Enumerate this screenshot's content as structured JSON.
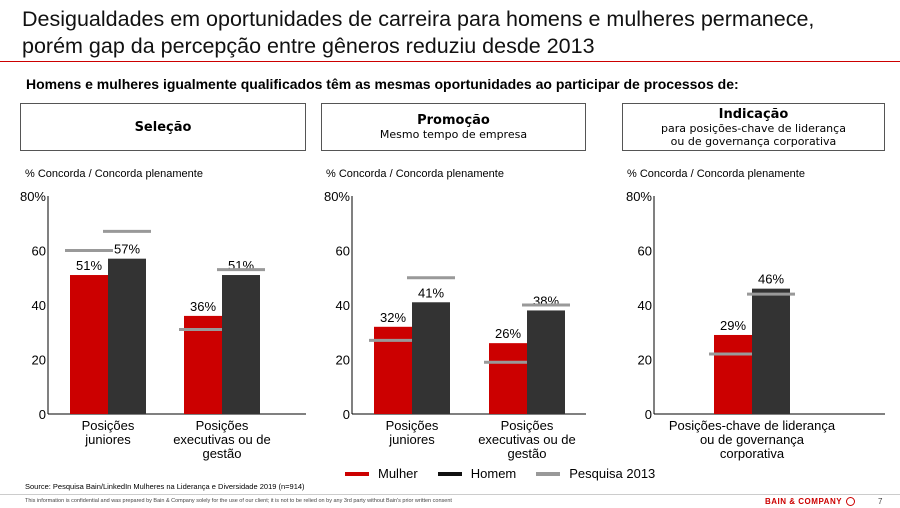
{
  "header": {
    "title_line1": "Desigualdades em oportunidades de carreira para homens e mulheres permanece,",
    "title_line2": "porém gap da percepção entre gêneros reduziu desde 2013",
    "subtitle": "Homens e mulheres igualmente qualificados têm as mesmas oportunidades ao participar de processos de:"
  },
  "colors": {
    "mulher": "#cc0000",
    "homem": "#333333",
    "pesquisa2013": "#999999",
    "accent": "#cc0000"
  },
  "chart_data": [
    {
      "type": "bar",
      "box_title": "Seleção",
      "box_subtitle": "",
      "ylabel": "% Concorda / Concorda plenamente",
      "ylim": [
        0,
        80
      ],
      "yticks": [
        "0",
        "20",
        "40",
        "60",
        "80%"
      ],
      "categories": [
        [
          "Posições",
          "juniores"
        ],
        [
          "Posições",
          "executivas ou de",
          "gestão"
        ]
      ],
      "series": [
        {
          "name": "Mulher",
          "values": [
            51,
            36
          ],
          "labels": [
            "51%",
            "36%"
          ]
        },
        {
          "name": "Homem",
          "values": [
            57,
            51
          ],
          "labels": [
            "57%",
            "51%"
          ]
        }
      ],
      "pesquisa_2013": {
        "mulher": [
          60,
          31
        ],
        "homem": [
          67,
          53
        ]
      }
    },
    {
      "type": "bar",
      "box_title": "Promoção",
      "box_subtitle": "Mesmo tempo de empresa",
      "ylabel": "% Concorda / Concorda plenamente",
      "ylim": [
        0,
        80
      ],
      "yticks": [
        "0",
        "20",
        "40",
        "60",
        "80%"
      ],
      "categories": [
        [
          "Posições",
          "juniores"
        ],
        [
          "Posições",
          "executivas ou de",
          "gestão"
        ]
      ],
      "series": [
        {
          "name": "Mulher",
          "values": [
            32,
            26
          ],
          "labels": [
            "32%",
            "26%"
          ]
        },
        {
          "name": "Homem",
          "values": [
            41,
            38
          ],
          "labels": [
            "41%",
            "38%"
          ]
        }
      ],
      "pesquisa_2013": {
        "mulher": [
          27,
          19
        ],
        "homem": [
          50,
          40
        ]
      }
    },
    {
      "type": "bar",
      "box_title": "Indicação",
      "box_subtitle": "para posições-chave de liderança ou de governança corporativa",
      "ylabel": "% Concorda / Concorda plenamente",
      "ylim": [
        0,
        80
      ],
      "yticks": [
        "0",
        "20",
        "40",
        "60",
        "80%"
      ],
      "categories": [
        [
          "Posições-chave de liderança",
          "ou de governança",
          "corporativa"
        ]
      ],
      "series": [
        {
          "name": "Mulher",
          "values": [
            29
          ],
          "labels": [
            "29%"
          ]
        },
        {
          "name": "Homem",
          "values": [
            46
          ],
          "labels": [
            "46%"
          ]
        }
      ],
      "pesquisa_2013": {
        "mulher": [
          22
        ],
        "homem": [
          44
        ]
      }
    }
  ],
  "legend": {
    "mulher": "Mulher",
    "homem": "Homem",
    "pesquisa2013": "Pesquisa 2013"
  },
  "footer": {
    "source": "Source: Pesquisa Bain/LinkedIn Mulheres na Liderança e Diversidade 2019 (n=914)",
    "confidential": "This information is confidential and was prepared by Bain & Company solely for the use of our client; it is not to be relied on by any 3rd party without Bain's prior written consent",
    "brand": "BAIN & COMPANY",
    "page_number": "7"
  }
}
